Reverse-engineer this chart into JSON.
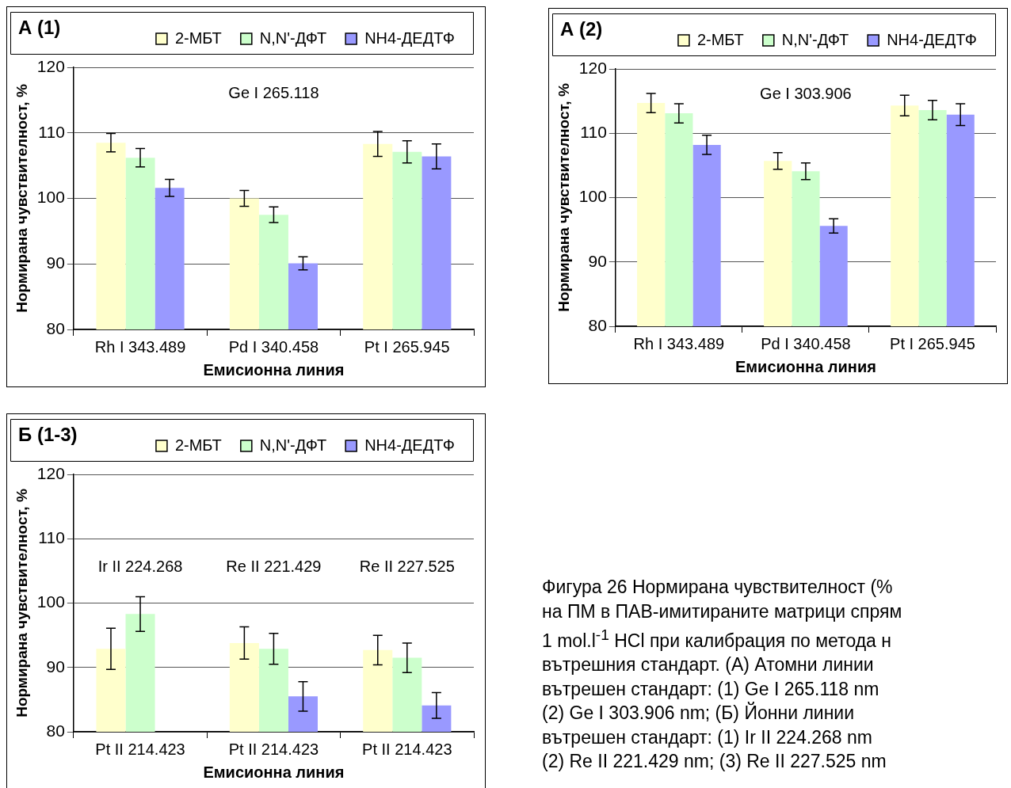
{
  "chart_data": [
    {
      "type": "bar",
      "title": "А (1)",
      "xlabel": "Емисионна линия",
      "ylabel": "Нормирана чувствителност, %",
      "categories": [
        "Rh I 343.489",
        "Pd I 340.458",
        "Pt I 265.945"
      ],
      "series": [
        {
          "name": "2-МБТ",
          "color": "#ffffcc",
          "values": [
            108.5,
            100.0,
            108.3
          ],
          "errors": [
            1.4,
            1.2,
            1.9
          ]
        },
        {
          "name": "N,N'-ДФТ",
          "color": "#ccffcc",
          "values": [
            106.2,
            97.5,
            107.1
          ],
          "errors": [
            1.4,
            1.2,
            1.7
          ]
        },
        {
          "name": "NH4-ДЕДТФ",
          "color": "#9999ff",
          "values": [
            101.6,
            90.1,
            106.4
          ],
          "errors": [
            1.3,
            1.0,
            1.9
          ]
        }
      ],
      "ylim": [
        80,
        120
      ],
      "yticks": [
        80,
        90,
        100,
        110,
        120
      ],
      "grid": "y",
      "legend": "top right",
      "annotations": [
        "Ge I 265.118"
      ]
    },
    {
      "type": "bar",
      "title": "А (2)",
      "xlabel": "Емисионна линия",
      "ylabel": "Нормирана чувствителност, %",
      "categories": [
        "Rh I 343.489",
        "Pd I 340.458",
        "Pt I 265.945"
      ],
      "series": [
        {
          "name": "2-МБТ",
          "color": "#ffffcc",
          "values": [
            114.7,
            105.7,
            114.3
          ],
          "errors": [
            1.5,
            1.3,
            1.6
          ]
        },
        {
          "name": "N,N'-ДФТ",
          "color": "#ccffcc",
          "values": [
            113.1,
            104.1,
            113.6
          ],
          "errors": [
            1.5,
            1.3,
            1.5
          ]
        },
        {
          "name": "NH4-ДЕДТФ",
          "color": "#9999ff",
          "values": [
            108.2,
            95.6,
            112.9
          ],
          "errors": [
            1.5,
            1.1,
            1.7
          ]
        }
      ],
      "ylim": [
        80,
        120
      ],
      "yticks": [
        80,
        90,
        100,
        110,
        120
      ],
      "grid": "y",
      "legend": "top right",
      "annotations": [
        "Ge I 303.906"
      ]
    },
    {
      "type": "bar",
      "title": "Б (1-3)",
      "xlabel": "Емисионна линия",
      "ylabel": "Нормирана чувствителност, %",
      "categories": [
        "Pt II 214.423",
        "Pt II 214.423",
        "Pt II 214.423"
      ],
      "series": [
        {
          "name": "2-МБТ",
          "color": "#ffffcc",
          "values": [
            92.9,
            93.8,
            92.7
          ],
          "errors": [
            3.2,
            2.5,
            2.3
          ]
        },
        {
          "name": "N,N'-ДФТ",
          "color": "#ccffcc",
          "values": [
            98.3,
            92.9,
            91.5
          ],
          "errors": [
            2.7,
            2.4,
            2.3
          ]
        },
        {
          "name": "NH4-ДЕДТФ",
          "color": "#9999ff",
          "values": [
            null,
            85.5,
            84.1
          ],
          "errors": [
            null,
            2.3,
            2.0
          ]
        }
      ],
      "ylim": [
        80,
        120
      ],
      "yticks": [
        80,
        90,
        100,
        110,
        120
      ],
      "grid": "y",
      "legend": "top right",
      "annotations": [
        "Ir II 224.268",
        "Re II 221.429",
        "Re II 227.525"
      ]
    },
    {
      "type": "other",
      "annotations": [
        "Фигура 26 Нормирана чувствителност (%",
        "на ПМ в ПАВ-имитираните матрици спрям",
        "1 mol.l$^{-1}$ HCl при калибрация по метода н",
        "вътрешния стандарт. (А) Атомни линии",
        "вътрешен стандарт: (1) Ge I 265.118 nm",
        "(2) Ge I 303.906 nm; (Б) Йонни линии",
        "вътрешен стандарт: (1) Ir II 224.268 nm",
        "(2) Re II 221.429 nm; (3) Re II 227.525 nm"
      ]
    }
  ]
}
